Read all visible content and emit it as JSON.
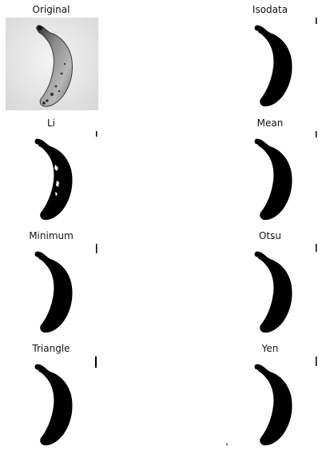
{
  "panels": [
    {
      "id": "original",
      "title": "Original"
    },
    {
      "id": "isodata",
      "title": "Isodata"
    },
    {
      "id": "li",
      "title": "Li"
    },
    {
      "id": "mean",
      "title": "Mean"
    },
    {
      "id": "minimum",
      "title": "Minimum"
    },
    {
      "id": "otsu",
      "title": "Otsu"
    },
    {
      "id": "triangle",
      "title": "Triangle"
    },
    {
      "id": "yen",
      "title": "Yen"
    }
  ]
}
